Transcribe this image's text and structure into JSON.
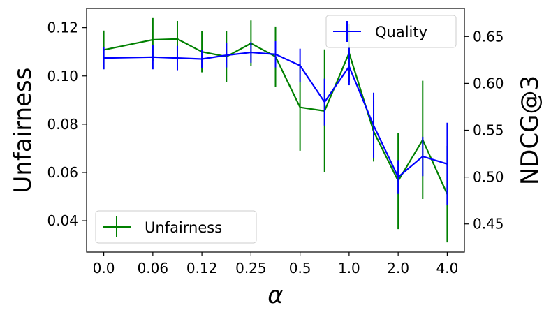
{
  "chart_data": {
    "type": "line",
    "x_axis": {
      "label": "α",
      "tick_labels": [
        "0.0",
        "0.06",
        "0.12",
        "0.25",
        "0.5",
        "1.0",
        "2.0",
        "4.0"
      ],
      "tick_positions": [
        0,
        2,
        4,
        6,
        8,
        10,
        12,
        14
      ],
      "xlim": [
        -0.7,
        14.7
      ]
    },
    "y_left": {
      "label": "Unfairness",
      "ylim": [
        0.027,
        0.128
      ],
      "ticks": [
        0.04,
        0.06,
        0.08,
        0.1,
        0.12
      ],
      "tick_labels": [
        "0.04",
        "0.06",
        "0.08",
        "0.10",
        "0.12"
      ]
    },
    "y_right": {
      "label": "NDCG@3",
      "ylim": [
        0.42,
        0.68
      ],
      "ticks": [
        0.45,
        0.5,
        0.55,
        0.6,
        0.65
      ],
      "tick_labels": [
        "0.45",
        "0.50",
        "0.55",
        "0.60",
        "0.65"
      ]
    },
    "series": [
      {
        "name": "Unfairness",
        "axis": "left",
        "color": "#008000",
        "x": [
          0,
          2,
          3,
          4,
          5,
          6,
          7,
          8,
          9,
          10,
          11,
          12,
          13,
          14
        ],
        "y": [
          0.1108,
          0.115,
          0.1153,
          0.11,
          0.108,
          0.1135,
          0.108,
          0.087,
          0.0855,
          0.1095,
          0.077,
          0.0565,
          0.0735,
          0.051
        ],
        "yerr": [
          0.008,
          0.009,
          0.0075,
          0.0085,
          0.0105,
          0.0095,
          0.0125,
          0.018,
          0.0255,
          0.012,
          0.0125,
          0.02,
          0.0245,
          0.02
        ]
      },
      {
        "name": "Quality",
        "axis": "right",
        "color": "#0000ff",
        "x": [
          0,
          2,
          3,
          4,
          5,
          6,
          7,
          8,
          9,
          10,
          11,
          12,
          13,
          14
        ],
        "y": [
          0.627,
          0.628,
          0.627,
          0.626,
          0.63,
          0.633,
          0.631,
          0.619,
          0.58,
          0.618,
          0.555,
          0.5,
          0.522,
          0.514
        ],
        "yerr": [
          0.012,
          0.013,
          0.013,
          0.01,
          0.013,
          0.011,
          0.014,
          0.018,
          0.025,
          0.02,
          0.035,
          0.018,
          0.021,
          0.044
        ]
      }
    ],
    "legends": [
      {
        "series": "Quality",
        "placement": "upper-right"
      },
      {
        "series": "Unfairness",
        "placement": "lower-left"
      }
    ],
    "grid": false
  }
}
